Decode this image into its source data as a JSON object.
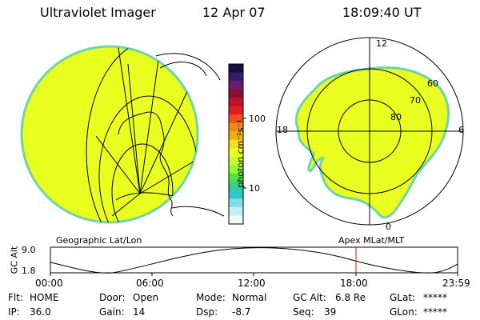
{
  "header": {
    "instrument": "Ultraviolet Imager",
    "date": "12 Apr 07",
    "time": "18:09:40 UT"
  },
  "colorbar": {
    "unit_label": "photon cm⁻²s⁻¹",
    "ticks": [
      "100",
      "10"
    ],
    "colors": [
      "#1a0f3a",
      "#3a1a6a",
      "#6a1a6a",
      "#8a1030",
      "#c0102a",
      "#e02020",
      "#f05020",
      "#f08a10",
      "#f0b010",
      "#f0e020",
      "#e8ff20",
      "#c8ff30",
      "#90ff30",
      "#50e040",
      "#30d090",
      "#30c8c8",
      "#80e0e8",
      "#c0f0f0",
      "#f0f8f8"
    ]
  },
  "left_panel": {
    "label": "Geographic Lat/Lon",
    "fill_color": "#e8ff20",
    "edge_color": "#6fd4a8"
  },
  "right_panel": {
    "label": "Apex  MLat/MLT",
    "mlt_labels": {
      "top": "12",
      "left": "18",
      "right": "6",
      "bottom": "0"
    },
    "lat_labels": [
      "60",
      "70",
      "80"
    ],
    "fill_color": "#e8ff20",
    "edge_color": "#6fd4a8"
  },
  "altitude_plot": {
    "ylabel": "GC Alt",
    "y_ticks": [
      "9.0",
      "1.8"
    ],
    "x_ticks": [
      "00:00",
      "06:00",
      "12:00",
      "18:00",
      "23:59"
    ],
    "marker_color": "#e01010"
  },
  "status": {
    "filter": {
      "label": "Flt:",
      "value": "HOME"
    },
    "door": {
      "label": "Door:",
      "value": "Open"
    },
    "mode": {
      "label": "Mode:",
      "value": "Normal"
    },
    "gc_alt": {
      "label": "GC Alt:",
      "value": "6.8 Re"
    },
    "glat": {
      "label": "GLat:",
      "value": "*****"
    },
    "ip": {
      "label": "IP:",
      "value": "36.0"
    },
    "gain": {
      "label": "Gain:",
      "value": "14"
    },
    "dsp": {
      "label": "Dsp:",
      "value": "-8.7"
    },
    "seq": {
      "label": "Seq:",
      "value": "39"
    },
    "glon": {
      "label": "GLon:",
      "value": "*****"
    }
  }
}
